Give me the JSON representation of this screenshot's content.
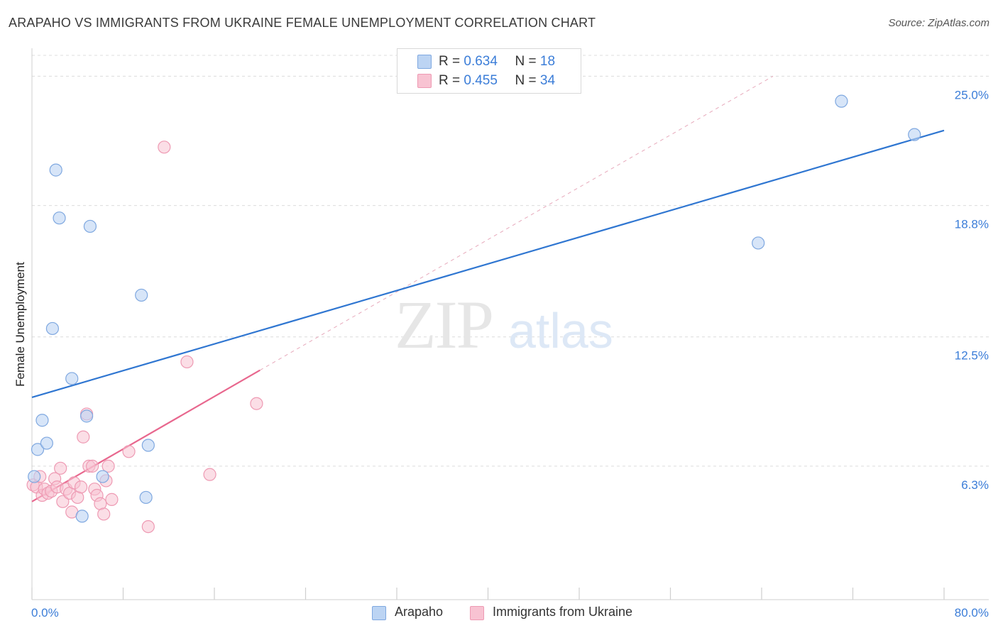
{
  "title": "ARAPAHO VS IMMIGRANTS FROM UKRAINE FEMALE UNEMPLOYMENT CORRELATION CHART",
  "source": "Source: ZipAtlas.com",
  "watermark": {
    "zip": "ZIP",
    "atlas": "atlas"
  },
  "colors": {
    "blue_fill": "#bcd4f3",
    "blue_stroke": "#7fa8e0",
    "blue_line": "#2f76d1",
    "pink_fill": "#f8c3d2",
    "pink_stroke": "#ee9ab3",
    "pink_line": "#e8678e",
    "grid": "#dcdcdc",
    "tick_text": "#3b7dd8"
  },
  "legend": {
    "series1": {
      "r_label": "R =",
      "r_value": "0.634",
      "n_label": "N =",
      "n_value": "18"
    },
    "series2": {
      "r_label": "R =",
      "r_value": "0.455",
      "n_label": "N =",
      "n_value": "34"
    }
  },
  "bottom_legend": {
    "series1": "Arapaho",
    "series2": "Immigrants from Ukraine"
  },
  "chart_data": {
    "type": "scatter",
    "title": "ARAPAHO VS IMMIGRANTS FROM UKRAINE FEMALE UNEMPLOYMENT CORRELATION CHART",
    "xlabel": "",
    "ylabel": "Female Unemployment",
    "xlim": [
      0,
      80
    ],
    "ylim": [
      0,
      26
    ],
    "x_tick_labels": [
      "0.0%",
      "80.0%"
    ],
    "y_ticks": [
      6.3,
      12.5,
      18.8,
      25.0
    ],
    "y_tick_labels": [
      "6.3%",
      "12.5%",
      "18.8%",
      "25.0%"
    ],
    "series": [
      {
        "name": "Arapaho",
        "points": [
          [
            0.2,
            5.8
          ],
          [
            0.5,
            7.1
          ],
          [
            0.9,
            8.5
          ],
          [
            1.3,
            7.4
          ],
          [
            1.8,
            12.9
          ],
          [
            2.1,
            20.5
          ],
          [
            2.4,
            18.2
          ],
          [
            3.5,
            10.5
          ],
          [
            4.4,
            3.9
          ],
          [
            4.8,
            8.7
          ],
          [
            5.1,
            17.8
          ],
          [
            6.2,
            5.8
          ],
          [
            9.6,
            14.5
          ],
          [
            10.0,
            4.8
          ],
          [
            10.2,
            7.3
          ],
          [
            63.7,
            17.0
          ],
          [
            71.0,
            23.8
          ],
          [
            77.4,
            22.2
          ]
        ],
        "trend": {
          "x": [
            0,
            80
          ],
          "y": [
            9.6,
            22.4
          ]
        }
      },
      {
        "name": "Immigrants from Ukraine",
        "points": [
          [
            0.1,
            5.4
          ],
          [
            0.4,
            5.3
          ],
          [
            0.7,
            5.8
          ],
          [
            0.9,
            4.9
          ],
          [
            1.1,
            5.2
          ],
          [
            1.4,
            5.0
          ],
          [
            1.7,
            5.1
          ],
          [
            2.0,
            5.7
          ],
          [
            2.2,
            5.3
          ],
          [
            2.5,
            6.2
          ],
          [
            2.7,
            4.6
          ],
          [
            3.0,
            5.2
          ],
          [
            3.3,
            5.0
          ],
          [
            3.5,
            4.1
          ],
          [
            3.7,
            5.5
          ],
          [
            4.0,
            4.8
          ],
          [
            4.3,
            5.3
          ],
          [
            4.5,
            7.7
          ],
          [
            4.8,
            8.8
          ],
          [
            5.0,
            6.3
          ],
          [
            5.3,
            6.3
          ],
          [
            5.5,
            5.2
          ],
          [
            5.7,
            4.9
          ],
          [
            6.0,
            4.5
          ],
          [
            6.3,
            4.0
          ],
          [
            6.5,
            5.6
          ],
          [
            6.7,
            6.3
          ],
          [
            7.0,
            4.7
          ],
          [
            8.5,
            7.0
          ],
          [
            10.2,
            3.4
          ],
          [
            11.6,
            21.6
          ],
          [
            13.6,
            11.3
          ],
          [
            15.6,
            5.9
          ],
          [
            19.7,
            9.3
          ]
        ],
        "trend_solid": {
          "x": [
            0,
            20
          ],
          "y": [
            4.6,
            10.9
          ]
        },
        "trend_dashed": {
          "x": [
            20,
            65
          ],
          "y": [
            10.9,
            25.0
          ]
        }
      }
    ]
  }
}
